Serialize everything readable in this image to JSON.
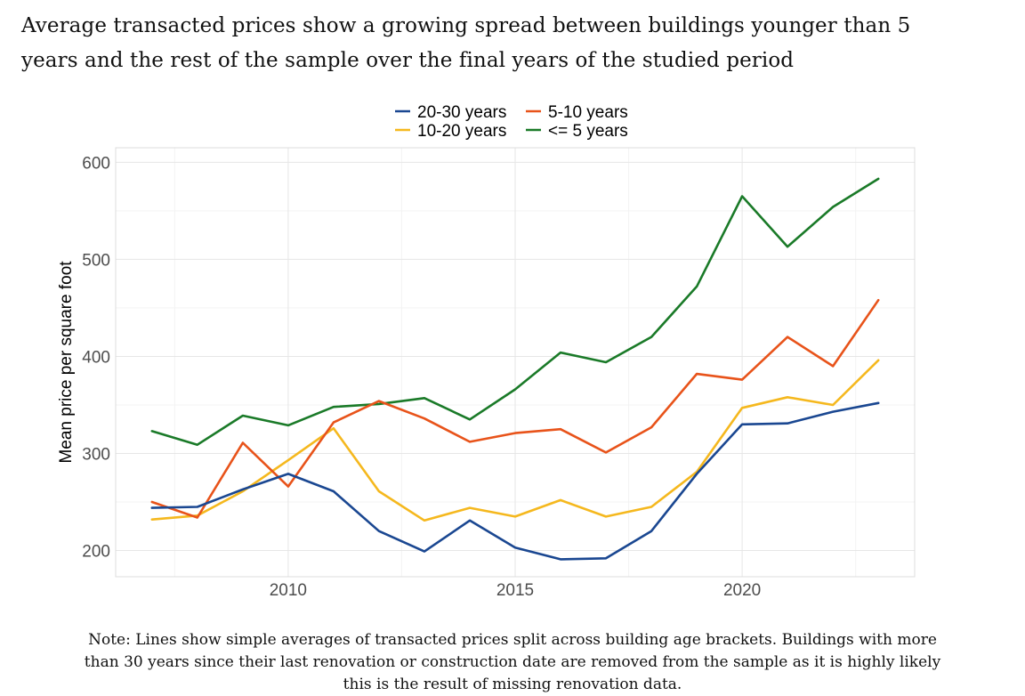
{
  "title_lines": [
    "Average transacted prices show a growing spread between buildings younger than 5",
    "years and the rest of the sample over the final years of the studied period"
  ],
  "note_lines": [
    "Note: Lines show simple averages of transacted prices split across building age brackets. Buildings with more",
    "than 30 years since their last renovation or construction date are removed from the sample as it is highly likely",
    "this is the result of missing renovation data."
  ],
  "chart_data": {
    "type": "line",
    "title": "Average transacted prices show a growing spread between buildings younger than 5 years and the rest of the sample over the final years of the studied period",
    "xlabel": "",
    "ylabel": "Mean price per square foot",
    "xlim": [
      2006.2,
      2023.8
    ],
    "ylim": [
      173,
      615
    ],
    "xticks": [
      2010,
      2015,
      2020
    ],
    "yticks": [
      200,
      300,
      400,
      500,
      600
    ],
    "grid": true,
    "legend_position": "top",
    "x": [
      2007,
      2008,
      2009,
      2010,
      2011,
      2012,
      2013,
      2014,
      2015,
      2016,
      2017,
      2018,
      2019,
      2020,
      2021,
      2022,
      2023
    ],
    "series": [
      {
        "name": "20-30 years",
        "color": "#1a4791",
        "values": [
          244,
          245,
          263,
          279,
          261,
          220,
          199,
          231,
          203,
          191,
          192,
          220,
          279,
          330,
          331,
          343,
          352
        ]
      },
      {
        "name": "5-10 years",
        "color": "#e8531a",
        "values": [
          250,
          234,
          311,
          266,
          332,
          354,
          336,
          312,
          321,
          325,
          301,
          327,
          382,
          376,
          420,
          390,
          458
        ]
      },
      {
        "name": "10-20 years",
        "color": "#f5b81e",
        "values": [
          232,
          236,
          261,
          293,
          326,
          261,
          231,
          244,
          235,
          252,
          235,
          245,
          281,
          347,
          358,
          350,
          396
        ]
      },
      {
        "name": "<= 5 years",
        "color": "#1a7a28",
        "values": [
          323,
          309,
          339,
          329,
          348,
          351,
          357,
          335,
          366,
          404,
          394,
          420,
          472,
          565,
          513,
          554,
          583
        ]
      }
    ],
    "legend_order": [
      "20-30 years",
      "5-10 years",
      "10-20 years",
      "<= 5 years"
    ]
  }
}
